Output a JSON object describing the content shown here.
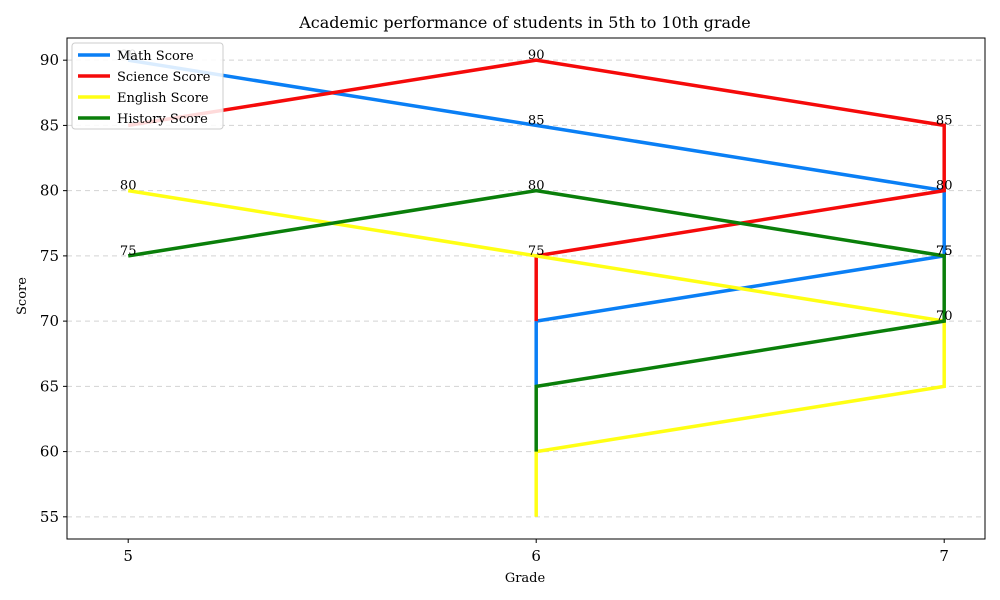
{
  "chart_data": {
    "type": "line",
    "title": "Academic performance of students in 5th to 10th grade",
    "xlabel": "Grade",
    "ylabel": "Score",
    "xlim": [
      4.85,
      7.1
    ],
    "ylim": [
      53.3,
      91.7
    ],
    "x_ticks": [
      5,
      6,
      7
    ],
    "y_ticks": [
      55,
      60,
      65,
      70,
      75,
      80,
      85,
      90
    ],
    "grid": "y-dashed",
    "legend_position": "top-left",
    "series": [
      {
        "name": "Math Score",
        "color": "#0a7ff5",
        "points": [
          [
            5,
            90
          ],
          [
            6,
            85
          ],
          [
            7,
            80
          ],
          [
            7,
            75
          ],
          [
            6,
            70
          ],
          [
            6,
            65
          ]
        ],
        "labels": [
          [
            "90",
            5,
            90
          ],
          [
            "85",
            6,
            85
          ],
          [
            "80",
            7,
            80
          ],
          [
            "75",
            7,
            75
          ]
        ]
      },
      {
        "name": "Science Score",
        "color": "#f50a0a",
        "points": [
          [
            5,
            85
          ],
          [
            6,
            90
          ],
          [
            7,
            85
          ],
          [
            7,
            80
          ],
          [
            6,
            75
          ],
          [
            6,
            70
          ]
        ],
        "labels": [
          [
            "90",
            6,
            90
          ],
          [
            "85",
            7,
            85
          ]
        ]
      },
      {
        "name": "English Score",
        "color": "#ffff14",
        "points": [
          [
            5,
            80
          ],
          [
            6,
            75
          ],
          [
            7,
            70
          ],
          [
            7,
            65
          ],
          [
            6,
            60
          ],
          [
            6,
            55
          ]
        ],
        "labels": [
          [
            "80",
            5,
            80
          ],
          [
            "75",
            6,
            75
          ],
          [
            "70",
            7,
            70
          ]
        ]
      },
      {
        "name": "History Score",
        "color": "#0a7f0a",
        "points": [
          [
            5,
            75
          ],
          [
            6,
            80
          ],
          [
            7,
            75
          ],
          [
            7,
            70
          ],
          [
            6,
            65
          ],
          [
            6,
            60
          ]
        ],
        "labels": [
          [
            "75",
            5,
            75
          ],
          [
            "80",
            6,
            80
          ],
          [
            "75",
            7,
            75
          ]
        ]
      }
    ]
  }
}
